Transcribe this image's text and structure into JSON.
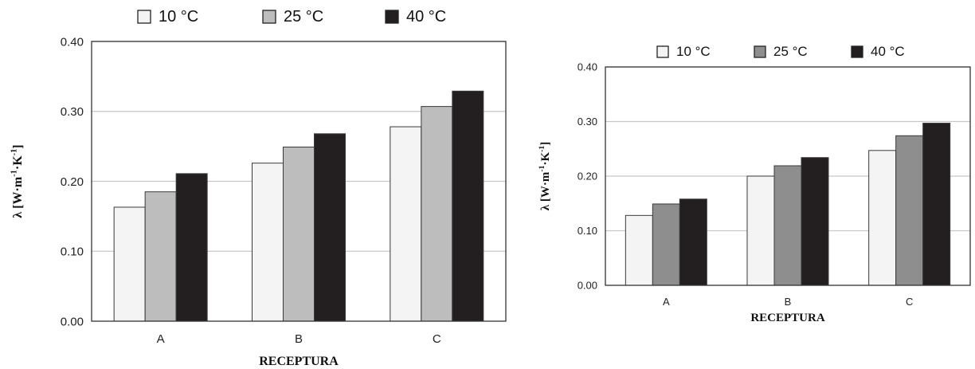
{
  "chart_data": [
    {
      "type": "bar",
      "categories": [
        "A",
        "B",
        "C"
      ],
      "series": [
        {
          "name": "10 °C",
          "values": [
            0.163,
            0.226,
            0.278
          ]
        },
        {
          "name": "25 °C",
          "values": [
            0.185,
            0.249,
            0.307
          ]
        },
        {
          "name": "40 °C",
          "values": [
            0.211,
            0.268,
            0.329
          ]
        }
      ],
      "colors": [
        "#f4f4f4",
        "#bdbdbd",
        "#231f20"
      ],
      "xlabel": "RECEPTURA",
      "ylabel": "λ [W·m-1·K-1]",
      "ylabel_parts": [
        "λ [W·m",
        "-1",
        "·K",
        "-1",
        "]"
      ],
      "yticks": [
        "0.00",
        "0.10",
        "0.20",
        "0.30",
        "0.40"
      ],
      "ylim": [
        0,
        0.4
      ],
      "grid": true,
      "legend": "top"
    },
    {
      "type": "bar",
      "categories": [
        "A",
        "B",
        "C"
      ],
      "series": [
        {
          "name": "10 °C",
          "values": [
            0.128,
            0.2,
            0.247
          ]
        },
        {
          "name": "25 °C",
          "values": [
            0.149,
            0.219,
            0.274
          ]
        },
        {
          "name": "40 °C",
          "values": [
            0.158,
            0.234,
            0.297
          ]
        }
      ],
      "colors": [
        "#f4f4f4",
        "#8e8e8e",
        "#231f20"
      ],
      "xlabel": "RECEPTURA",
      "ylabel": "λ [W·m-1·K-1]",
      "ylabel_parts": [
        "λ [W·m",
        "-1",
        "·K",
        "-1",
        "]"
      ],
      "yticks": [
        "0.00",
        "0.10",
        "0.20",
        "0.30",
        "0.40"
      ],
      "ylim": [
        0,
        0.4
      ],
      "grid": true,
      "legend": "top"
    }
  ]
}
